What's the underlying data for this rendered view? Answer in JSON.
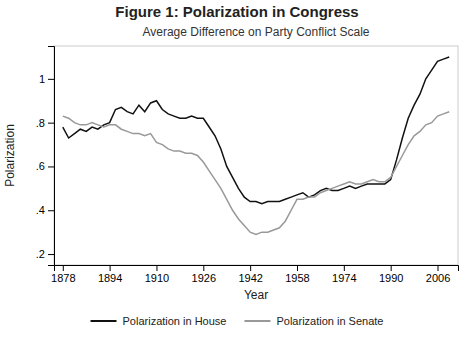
{
  "chart_data": {
    "type": "line",
    "title": "Figure 1: Polarization in Congress",
    "subtitle": "Average Difference on Party Conflict Scale",
    "xlabel": "Year",
    "ylabel": "Polarization",
    "x": [
      1878,
      1880,
      1882,
      1884,
      1886,
      1888,
      1890,
      1892,
      1894,
      1896,
      1898,
      1900,
      1902,
      1904,
      1906,
      1908,
      1910,
      1912,
      1914,
      1916,
      1918,
      1920,
      1922,
      1924,
      1926,
      1928,
      1930,
      1932,
      1934,
      1936,
      1938,
      1940,
      1942,
      1944,
      1946,
      1948,
      1950,
      1952,
      1954,
      1956,
      1958,
      1960,
      1962,
      1964,
      1966,
      1968,
      1970,
      1972,
      1974,
      1976,
      1978,
      1980,
      1982,
      1984,
      1986,
      1988,
      1990,
      1992,
      1994,
      1996,
      1998,
      2000,
      2002,
      2004,
      2006,
      2008,
      2010
    ],
    "series": [
      {
        "name": "Polarization in House",
        "color": "#111111",
        "values": [
          0.78,
          0.73,
          0.75,
          0.77,
          0.76,
          0.78,
          0.77,
          0.79,
          0.8,
          0.86,
          0.87,
          0.85,
          0.84,
          0.88,
          0.85,
          0.89,
          0.9,
          0.86,
          0.84,
          0.83,
          0.82,
          0.82,
          0.83,
          0.82,
          0.82,
          0.78,
          0.74,
          0.68,
          0.6,
          0.55,
          0.5,
          0.46,
          0.44,
          0.44,
          0.43,
          0.44,
          0.44,
          0.44,
          0.45,
          0.46,
          0.47,
          0.48,
          0.46,
          0.47,
          0.49,
          0.5,
          0.49,
          0.49,
          0.5,
          0.51,
          0.5,
          0.51,
          0.52,
          0.52,
          0.52,
          0.52,
          0.54,
          0.63,
          0.73,
          0.82,
          0.88,
          0.93,
          1.0,
          1.04,
          1.08,
          1.09,
          1.1
        ]
      },
      {
        "name": "Polarization in Senate",
        "color": "#999999",
        "values": [
          0.83,
          0.82,
          0.8,
          0.79,
          0.79,
          0.8,
          0.79,
          0.78,
          0.79,
          0.79,
          0.77,
          0.76,
          0.75,
          0.75,
          0.74,
          0.75,
          0.71,
          0.7,
          0.68,
          0.67,
          0.67,
          0.66,
          0.66,
          0.65,
          0.62,
          0.58,
          0.54,
          0.5,
          0.45,
          0.4,
          0.36,
          0.33,
          0.3,
          0.29,
          0.3,
          0.3,
          0.31,
          0.32,
          0.35,
          0.4,
          0.45,
          0.45,
          0.46,
          0.46,
          0.48,
          0.49,
          0.5,
          0.51,
          0.52,
          0.53,
          0.52,
          0.52,
          0.53,
          0.54,
          0.53,
          0.53,
          0.55,
          0.6,
          0.65,
          0.7,
          0.74,
          0.76,
          0.79,
          0.8,
          0.83,
          0.84,
          0.85
        ]
      }
    ],
    "xlim": [
      1875,
      2013
    ],
    "xticks": [
      1878,
      1894,
      1910,
      1926,
      1942,
      1958,
      1974,
      1990,
      2006
    ],
    "ylim": [
      0.15,
      1.15
    ],
    "yticks": [
      {
        "value": 0.2,
        "label": ".2"
      },
      {
        "value": 0.4,
        "label": ".4"
      },
      {
        "value": 0.6,
        "label": ".6"
      },
      {
        "value": 0.8,
        "label": ".8"
      },
      {
        "value": 1.0,
        "label": "1"
      }
    ],
    "legend": "bottom"
  }
}
